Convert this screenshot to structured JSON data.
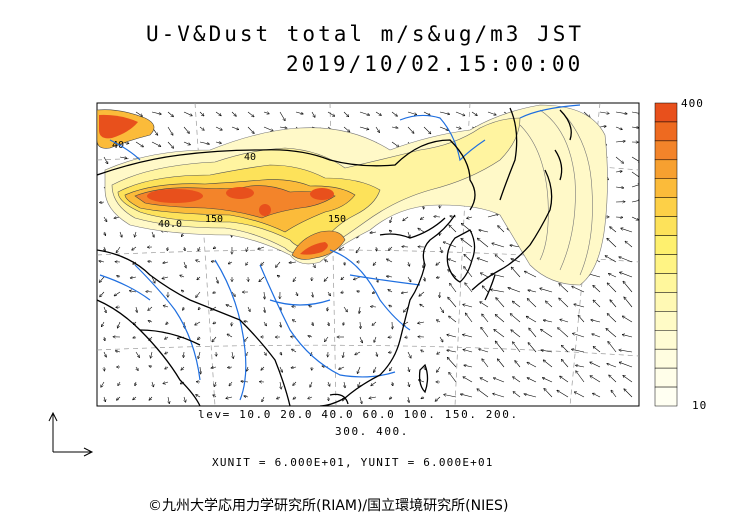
{
  "title": {
    "line1": "U-V&Dust total m/s&ug/m3 JST",
    "line2": "2019/10/02.15:00:00"
  },
  "colorbar": {
    "max_label": "400",
    "min_label": "10",
    "colors": [
      "#e8501c",
      "#ee6a20",
      "#f3842a",
      "#f7a030",
      "#fbbb3a",
      "#fdd047",
      "#fde25a",
      "#fef06e",
      "#fff484",
      "#fff79c",
      "#fff9b4",
      "#fffbc6",
      "#fffcd4",
      "#fffde0",
      "#fffee9",
      "#fffff2"
    ]
  },
  "contour_labels": [
    "40",
    "40",
    "40.0",
    "150",
    "150"
  ],
  "levels": {
    "line1": "lev= 10.0 20.0 40.0 60.0 100. 150. 200.",
    "line2": "300. 400."
  },
  "units": "XUNIT = 6.000E+01, YUNIT = 6.000E+01",
  "credit": "©九州大学応用力学研究所(RIAM)/国立環境研究所(NIES)",
  "colors": {
    "coast": "#000000",
    "river": "#1f6fe0",
    "grid": "#9a9a9a",
    "dust_high": "#e8501c",
    "dust_low": "#fff7b0"
  }
}
